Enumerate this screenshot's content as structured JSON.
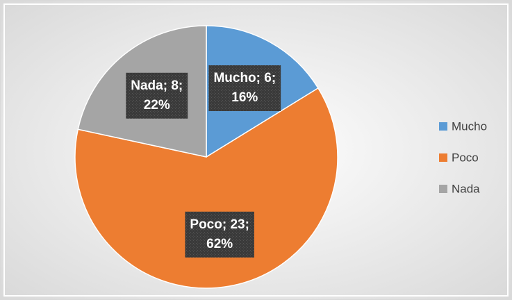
{
  "chart_data": {
    "type": "pie",
    "categories": [
      "Mucho",
      "Poco",
      "Nada"
    ],
    "values": [
      6,
      23,
      8
    ],
    "value_labels": [
      [
        "Mucho; 6;",
        "16%"
      ],
      [
        "Poco; 23;",
        "62%"
      ],
      [
        "Nada; 8;",
        "22%"
      ]
    ],
    "colors": [
      "#5b9bd5",
      "#ed7d31",
      "#a5a5a5"
    ],
    "legend": "right"
  }
}
